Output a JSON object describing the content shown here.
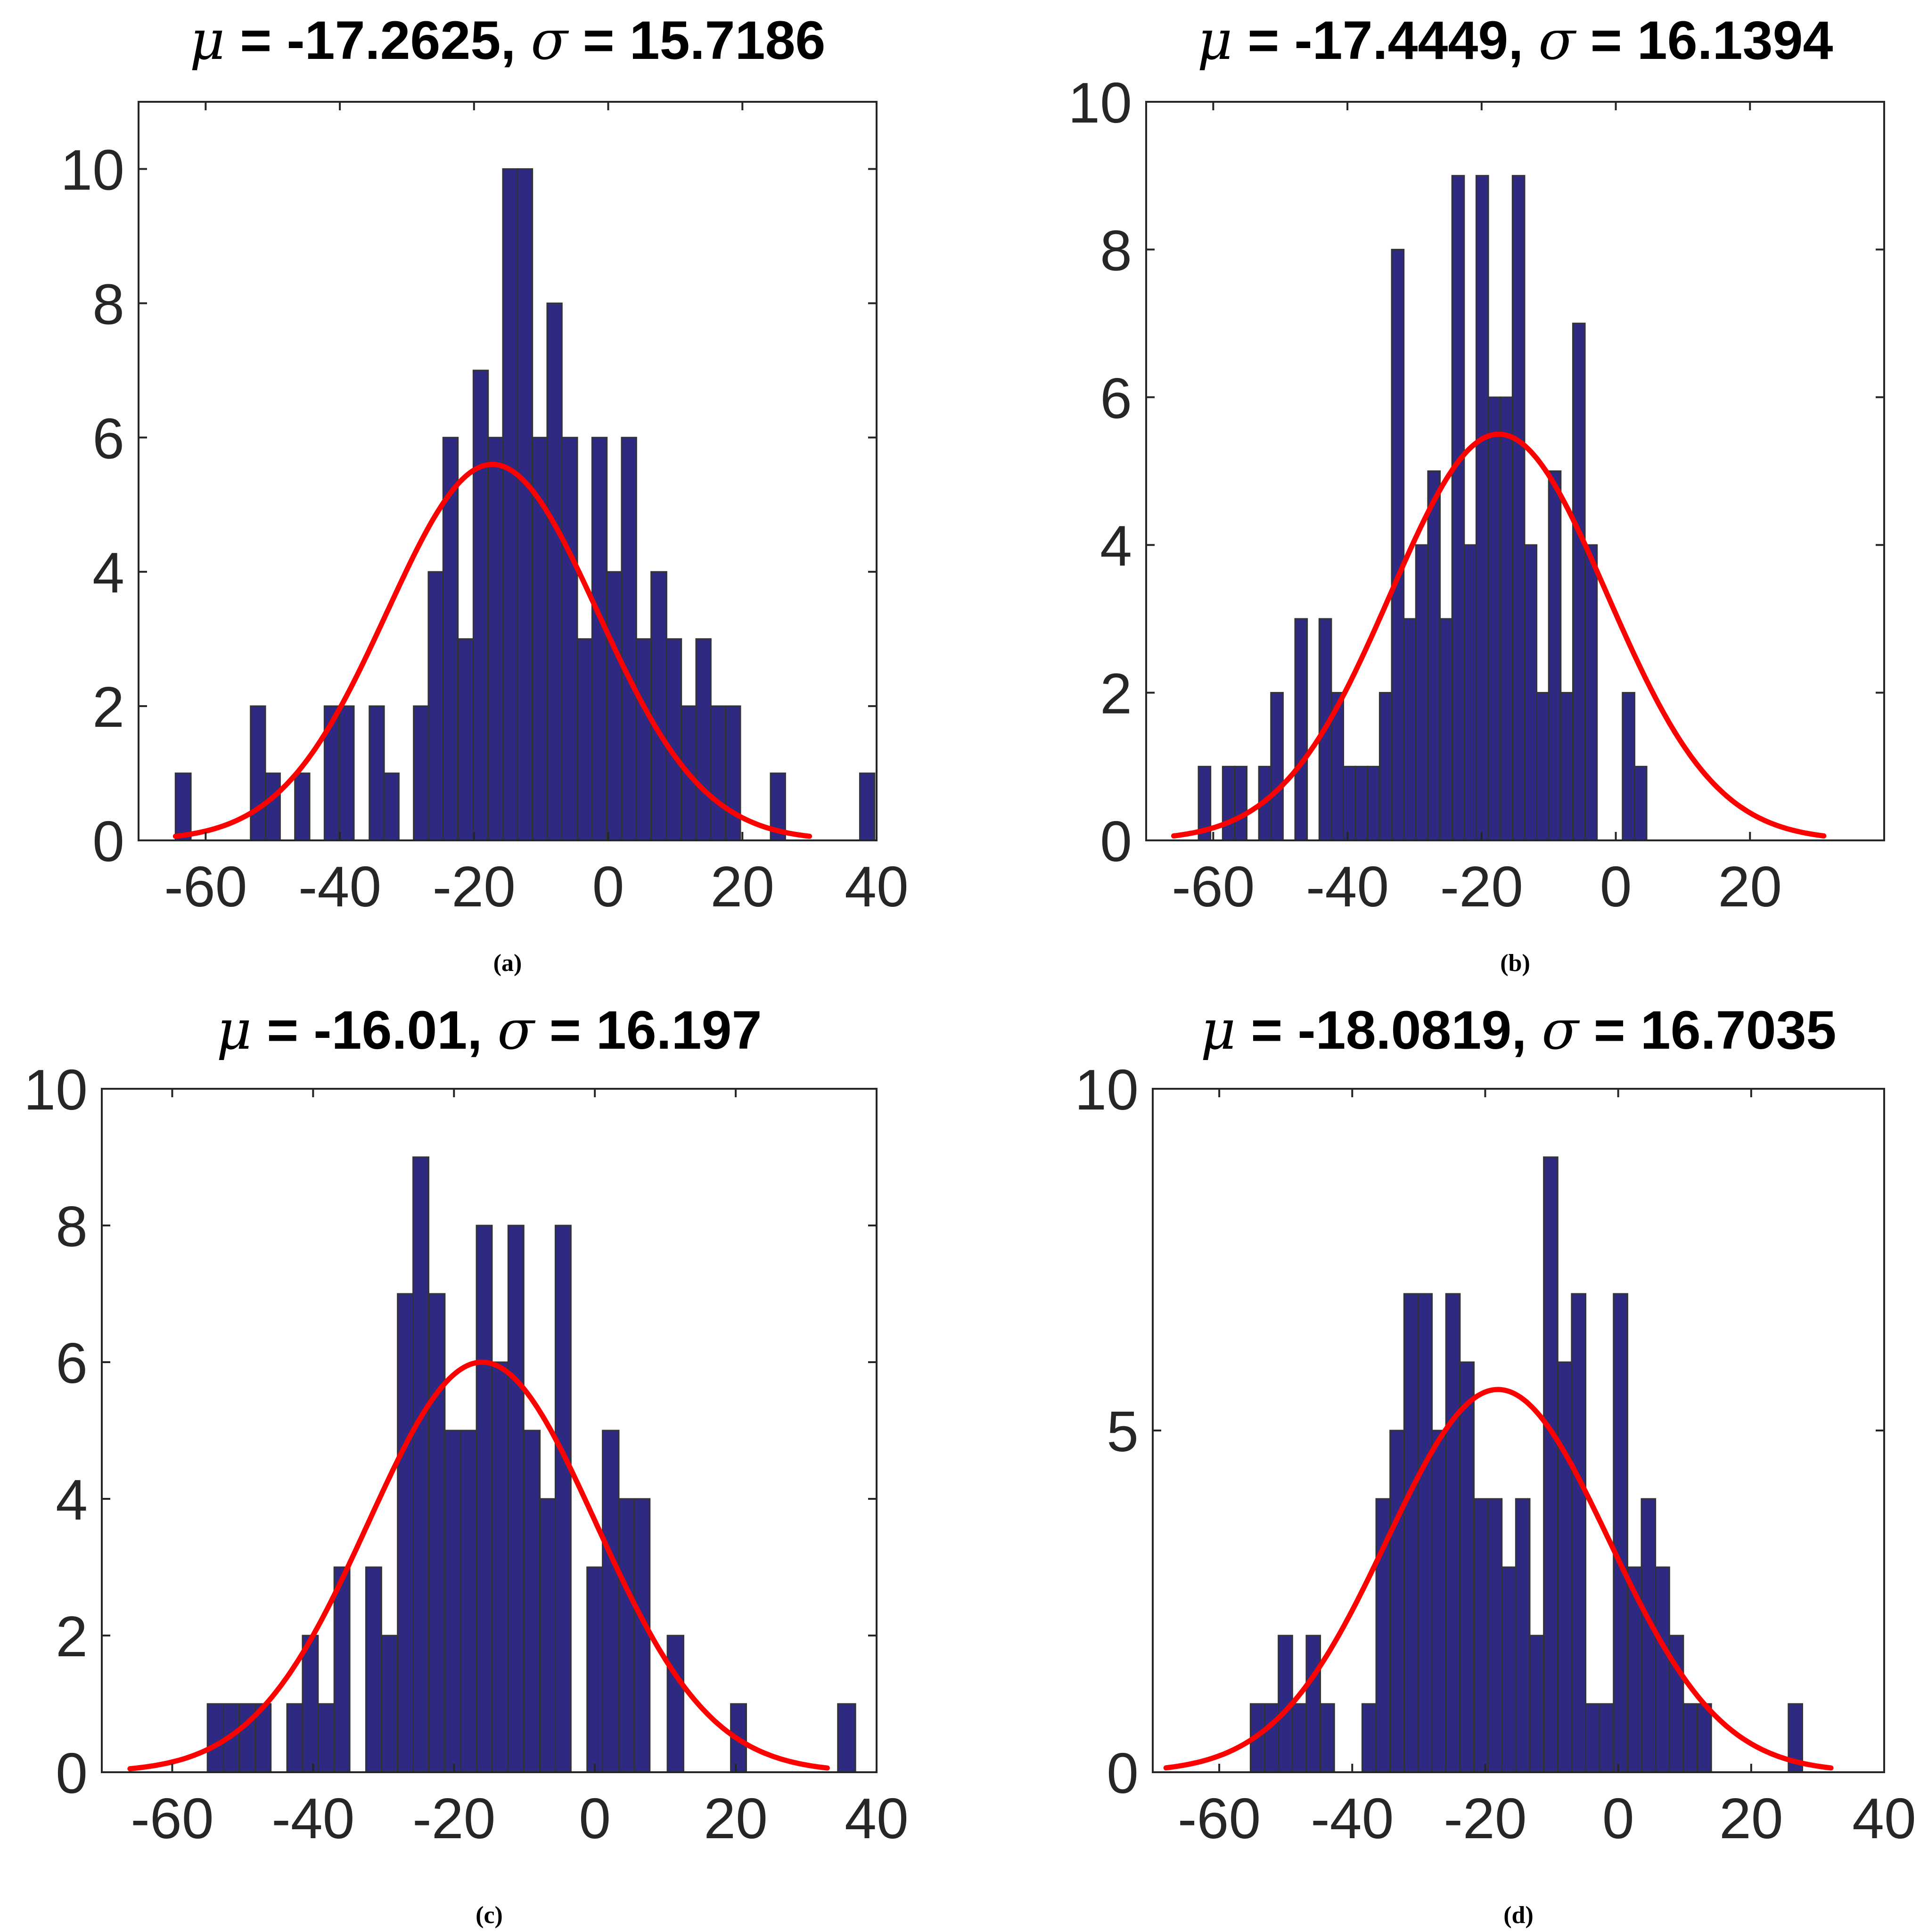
{
  "chart_data": [
    {
      "type": "bar",
      "caption": "(a)",
      "title": {
        "mu_symbol": "μ",
        "sigma_symbol": "σ",
        "mu": "-17.2625",
        "sigma": "15.7186"
      },
      "xlim": [
        -70,
        40
      ],
      "ylim": [
        0,
        11
      ],
      "xticks": [
        -60,
        -40,
        -20,
        0,
        20,
        40
      ],
      "xtick_labels": [
        "-60",
        "-40",
        "-20",
        "0",
        "20",
        "40"
      ],
      "yticks": [
        0,
        2,
        4,
        6,
        8,
        10
      ],
      "ytick_labels": [
        "0",
        "2",
        "4",
        "6",
        "8",
        "10"
      ],
      "fit": {
        "type": "normal",
        "mu": -17.2625,
        "sigma": 15.7186,
        "peak": 5.6,
        "x_range": [
          -64.5,
          30
        ]
      },
      "bins": [
        {
          "x0": -64.5,
          "x1": -62.2,
          "count": 1
        },
        {
          "x0": -53.3,
          "x1": -51.1,
          "count": 2
        },
        {
          "x0": -51.1,
          "x1": -48.9,
          "count": 1
        },
        {
          "x0": -46.7,
          "x1": -44.5,
          "count": 1
        },
        {
          "x0": -42.3,
          "x1": -40.1,
          "count": 2
        },
        {
          "x0": -40.1,
          "x1": -37.9,
          "count": 2
        },
        {
          "x0": -35.6,
          "x1": -33.4,
          "count": 2
        },
        {
          "x0": -33.4,
          "x1": -31.2,
          "count": 1
        },
        {
          "x0": -29.0,
          "x1": -26.8,
          "count": 2
        },
        {
          "x0": -26.8,
          "x1": -24.6,
          "count": 4
        },
        {
          "x0": -24.6,
          "x1": -22.4,
          "count": 6
        },
        {
          "x0": -22.4,
          "x1": -20.1,
          "count": 3
        },
        {
          "x0": -20.1,
          "x1": -17.9,
          "count": 7
        },
        {
          "x0": -17.9,
          "x1": -15.7,
          "count": 6
        },
        {
          "x0": -15.7,
          "x1": -13.5,
          "count": 10
        },
        {
          "x0": -13.5,
          "x1": -11.3,
          "count": 10
        },
        {
          "x0": -11.3,
          "x1": -9.1,
          "count": 6
        },
        {
          "x0": -9.1,
          "x1": -6.9,
          "count": 8
        },
        {
          "x0": -6.9,
          "x1": -4.6,
          "count": 6
        },
        {
          "x0": -4.6,
          "x1": -2.4,
          "count": 3
        },
        {
          "x0": -2.4,
          "x1": -0.2,
          "count": 6
        },
        {
          "x0": -0.2,
          "x1": 2.0,
          "count": 4
        },
        {
          "x0": 2.0,
          "x1": 4.2,
          "count": 6
        },
        {
          "x0": 4.2,
          "x1": 6.4,
          "count": 3
        },
        {
          "x0": 6.4,
          "x1": 8.7,
          "count": 4
        },
        {
          "x0": 8.7,
          "x1": 10.9,
          "count": 3
        },
        {
          "x0": 10.9,
          "x1": 13.1,
          "count": 2
        },
        {
          "x0": 13.1,
          "x1": 15.3,
          "count": 3
        },
        {
          "x0": 15.3,
          "x1": 17.5,
          "count": 2
        },
        {
          "x0": 17.5,
          "x1": 19.7,
          "count": 2
        },
        {
          "x0": 24.2,
          "x1": 26.4,
          "count": 1
        },
        {
          "x0": 37.5,
          "x1": 39.7,
          "count": 1
        }
      ]
    },
    {
      "type": "bar",
      "caption": "(b)",
      "title": {
        "mu_symbol": "μ",
        "sigma_symbol": "σ",
        "mu": "-17.4449",
        "sigma": "16.1394"
      },
      "xlim": [
        -70,
        40
      ],
      "ylim": [
        0,
        10
      ],
      "xticks": [
        -60,
        -40,
        -20,
        0,
        20
      ],
      "xtick_labels": [
        "-60",
        "-40",
        "-20",
        "0",
        "20"
      ],
      "yticks": [
        0,
        2,
        4,
        6,
        8,
        10
      ],
      "ytick_labels": [
        "0",
        "2",
        "4",
        "6",
        "8",
        "10"
      ],
      "fit": {
        "type": "normal",
        "mu": -17.4449,
        "sigma": 16.1394,
        "peak": 5.5,
        "x_range": [
          -65.9,
          31
        ]
      },
      "bins": [
        {
          "x0": -62.2,
          "x1": -60.4,
          "count": 1
        },
        {
          "x0": -58.6,
          "x1": -56.8,
          "count": 1
        },
        {
          "x0": -56.8,
          "x1": -55.0,
          "count": 1
        },
        {
          "x0": -53.2,
          "x1": -51.4,
          "count": 1
        },
        {
          "x0": -51.4,
          "x1": -49.6,
          "count": 2
        },
        {
          "x0": -47.8,
          "x1": -46.0,
          "count": 3
        },
        {
          "x0": -44.2,
          "x1": -42.4,
          "count": 3
        },
        {
          "x0": -42.4,
          "x1": -40.6,
          "count": 2
        },
        {
          "x0": -40.6,
          "x1": -38.8,
          "count": 1
        },
        {
          "x0": -38.8,
          "x1": -37.0,
          "count": 1
        },
        {
          "x0": -37.0,
          "x1": -35.2,
          "count": 1
        },
        {
          "x0": -35.2,
          "x1": -33.4,
          "count": 2
        },
        {
          "x0": -33.4,
          "x1": -31.6,
          "count": 8
        },
        {
          "x0": -31.6,
          "x1": -29.8,
          "count": 3
        },
        {
          "x0": -29.8,
          "x1": -28.0,
          "count": 4
        },
        {
          "x0": -28.0,
          "x1": -26.2,
          "count": 5
        },
        {
          "x0": -26.2,
          "x1": -24.4,
          "count": 3
        },
        {
          "x0": -24.4,
          "x1": -22.6,
          "count": 9
        },
        {
          "x0": -22.6,
          "x1": -20.8,
          "count": 4
        },
        {
          "x0": -20.8,
          "x1": -19.0,
          "count": 9
        },
        {
          "x0": -19.0,
          "x1": -17.2,
          "count": 6
        },
        {
          "x0": -17.2,
          "x1": -15.4,
          "count": 6
        },
        {
          "x0": -15.4,
          "x1": -13.6,
          "count": 9
        },
        {
          "x0": -13.6,
          "x1": -11.8,
          "count": 4
        },
        {
          "x0": -11.8,
          "x1": -10.0,
          "count": 2
        },
        {
          "x0": -10.0,
          "x1": -8.2,
          "count": 5
        },
        {
          "x0": -8.2,
          "x1": -6.4,
          "count": 2
        },
        {
          "x0": -6.4,
          "x1": -4.6,
          "count": 7
        },
        {
          "x0": -4.6,
          "x1": -2.8,
          "count": 4
        },
        {
          "x0": 1.0,
          "x1": 2.8,
          "count": 2
        },
        {
          "x0": 2.8,
          "x1": 4.6,
          "count": 1
        }
      ]
    },
    {
      "type": "bar",
      "caption": "(c)",
      "title": {
        "mu_symbol": "μ",
        "sigma_symbol": "σ",
        "mu": "-16.01",
        "sigma": "16.197"
      },
      "xlim": [
        -70,
        40
      ],
      "ylim": [
        0,
        10
      ],
      "xticks": [
        -60,
        -40,
        -20,
        0,
        20,
        40
      ],
      "xtick_labels": [
        "-60",
        "-40",
        "-20",
        "0",
        "20",
        "40"
      ],
      "yticks": [
        0,
        2,
        4,
        6,
        8,
        10
      ],
      "ytick_labels": [
        "0",
        "2",
        "4",
        "6",
        "8",
        "10"
      ],
      "fit": {
        "type": "normal",
        "mu": -16.01,
        "sigma": 16.197,
        "peak": 6.0,
        "x_range": [
          -66,
          33
        ]
      },
      "bins": [
        {
          "x0": -55.0,
          "x1": -52.7,
          "count": 1
        },
        {
          "x0": -52.7,
          "x1": -50.5,
          "count": 1
        },
        {
          "x0": -50.5,
          "x1": -48.2,
          "count": 1
        },
        {
          "x0": -48.2,
          "x1": -46.0,
          "count": 1
        },
        {
          "x0": -43.7,
          "x1": -41.5,
          "count": 1
        },
        {
          "x0": -41.5,
          "x1": -39.3,
          "count": 2
        },
        {
          "x0": -39.3,
          "x1": -37.0,
          "count": 1
        },
        {
          "x0": -37.0,
          "x1": -34.8,
          "count": 3
        },
        {
          "x0": -32.5,
          "x1": -30.3,
          "count": 3
        },
        {
          "x0": -30.3,
          "x1": -28.0,
          "count": 2
        },
        {
          "x0": -28.0,
          "x1": -25.8,
          "count": 7
        },
        {
          "x0": -25.8,
          "x1": -23.6,
          "count": 9
        },
        {
          "x0": -23.6,
          "x1": -21.3,
          "count": 7
        },
        {
          "x0": -21.3,
          "x1": -19.1,
          "count": 5
        },
        {
          "x0": -19.1,
          "x1": -16.8,
          "count": 5
        },
        {
          "x0": -16.8,
          "x1": -14.6,
          "count": 8
        },
        {
          "x0": -14.6,
          "x1": -12.3,
          "count": 6
        },
        {
          "x0": -12.3,
          "x1": -10.1,
          "count": 8
        },
        {
          "x0": -10.1,
          "x1": -7.8,
          "count": 5
        },
        {
          "x0": -7.8,
          "x1": -5.6,
          "count": 4
        },
        {
          "x0": -5.6,
          "x1": -3.4,
          "count": 8
        },
        {
          "x0": -1.1,
          "x1": 1.1,
          "count": 3
        },
        {
          "x0": 1.1,
          "x1": 3.4,
          "count": 5
        },
        {
          "x0": 3.4,
          "x1": 5.6,
          "count": 4
        },
        {
          "x0": 5.6,
          "x1": 7.8,
          "count": 4
        },
        {
          "x0": 10.3,
          "x1": 12.6,
          "count": 2
        },
        {
          "x0": 19.3,
          "x1": 21.5,
          "count": 1
        },
        {
          "x0": 34.5,
          "x1": 37.0,
          "count": 1
        }
      ]
    },
    {
      "type": "bar",
      "caption": "(d)",
      "title": {
        "mu_symbol": "μ",
        "sigma_symbol": "σ",
        "mu": "-18.0819",
        "sigma": "16.7035"
      },
      "xlim": [
        -70,
        40
      ],
      "ylim": [
        0,
        10
      ],
      "xticks": [
        -60,
        -40,
        -20,
        0,
        20,
        40
      ],
      "xtick_labels": [
        "-60",
        "-40",
        "-20",
        "0",
        "20",
        "40"
      ],
      "yticks": [
        0,
        5,
        10
      ],
      "ytick_labels": [
        "0",
        "5",
        "10"
      ],
      "fit": {
        "type": "normal",
        "mu": -18.0819,
        "sigma": 16.7035,
        "peak": 5.6,
        "x_range": [
          -68,
          32
        ]
      },
      "bins": [
        {
          "x0": -55.3,
          "x1": -53.2,
          "count": 1
        },
        {
          "x0": -53.2,
          "x1": -51.1,
          "count": 1
        },
        {
          "x0": -51.1,
          "x1": -49.0,
          "count": 2
        },
        {
          "x0": -49.0,
          "x1": -46.9,
          "count": 1
        },
        {
          "x0": -46.9,
          "x1": -44.8,
          "count": 2
        },
        {
          "x0": -44.8,
          "x1": -42.7,
          "count": 1
        },
        {
          "x0": -38.5,
          "x1": -36.4,
          "count": 1
        },
        {
          "x0": -36.4,
          "x1": -34.3,
          "count": 4
        },
        {
          "x0": -34.3,
          "x1": -32.2,
          "count": 5
        },
        {
          "x0": -32.2,
          "x1": -30.1,
          "count": 7
        },
        {
          "x0": -30.1,
          "x1": -28.0,
          "count": 7
        },
        {
          "x0": -28.0,
          "x1": -25.9,
          "count": 5
        },
        {
          "x0": -25.9,
          "x1": -23.8,
          "count": 7
        },
        {
          "x0": -23.8,
          "x1": -21.7,
          "count": 6
        },
        {
          "x0": -21.7,
          "x1": -19.6,
          "count": 4
        },
        {
          "x0": -19.6,
          "x1": -17.5,
          "count": 4
        },
        {
          "x0": -17.5,
          "x1": -15.4,
          "count": 3
        },
        {
          "x0": -15.4,
          "x1": -13.3,
          "count": 4
        },
        {
          "x0": -13.3,
          "x1": -11.2,
          "count": 2
        },
        {
          "x0": -11.2,
          "x1": -9.1,
          "count": 9
        },
        {
          "x0": -9.1,
          "x1": -7.0,
          "count": 6
        },
        {
          "x0": -7.0,
          "x1": -4.9,
          "count": 7
        },
        {
          "x0": -4.9,
          "x1": -2.8,
          "count": 1
        },
        {
          "x0": -2.8,
          "x1": -0.7,
          "count": 1
        },
        {
          "x0": -0.7,
          "x1": 1.4,
          "count": 7
        },
        {
          "x0": 1.4,
          "x1": 3.5,
          "count": 3
        },
        {
          "x0": 3.5,
          "x1": 5.6,
          "count": 4
        },
        {
          "x0": 5.6,
          "x1": 7.7,
          "count": 3
        },
        {
          "x0": 7.7,
          "x1": 9.8,
          "count": 2
        },
        {
          "x0": 9.8,
          "x1": 11.9,
          "count": 1
        },
        {
          "x0": 11.9,
          "x1": 14.0,
          "count": 1
        },
        {
          "x0": 25.6,
          "x1": 27.7,
          "count": 1
        }
      ]
    }
  ]
}
